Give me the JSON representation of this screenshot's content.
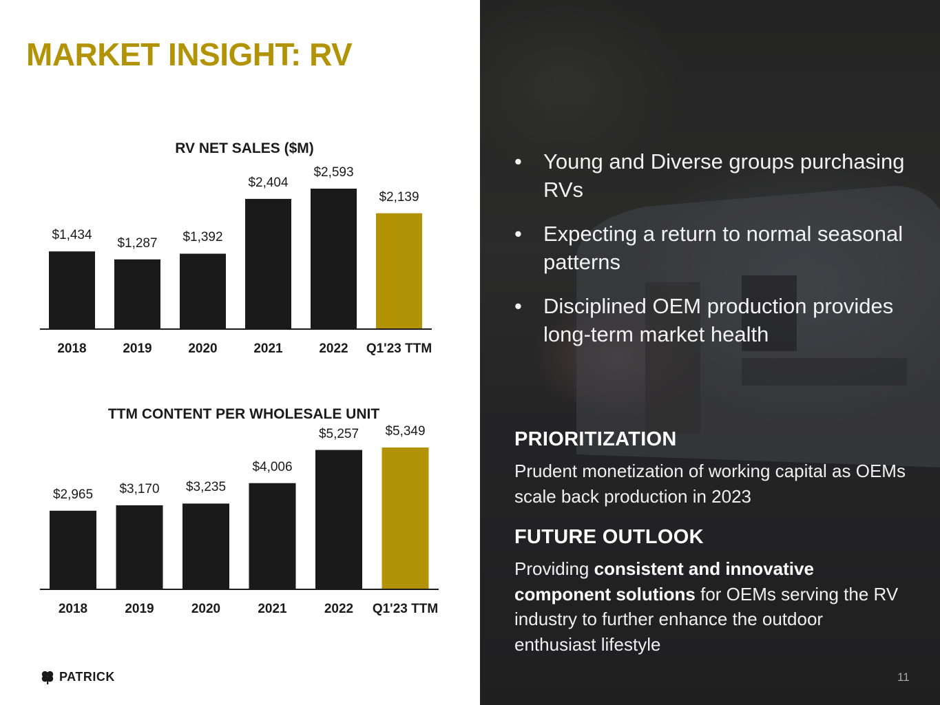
{
  "title": "MARKET INSIGHT: RV",
  "colors": {
    "accent": "#b39306",
    "bar": "#1b1a1b",
    "highlight": "#b39306"
  },
  "chart_data": [
    {
      "type": "bar",
      "title": "RV NET SALES ($M)",
      "categories": [
        "2018",
        "2019",
        "2020",
        "2021",
        "2022",
        "Q1'23 TTM"
      ],
      "values": [
        1434,
        1287,
        1392,
        2404,
        2593,
        2139
      ],
      "data_labels": [
        "$1,434",
        "$1,287",
        "$1,392",
        "$2,404",
        "$2,593",
        "$2,139"
      ],
      "highlight_index": 5,
      "ylim": [
        0,
        2593
      ],
      "grid": false,
      "legend": "none"
    },
    {
      "type": "bar",
      "title": "TTM CONTENT PER WHOLESALE UNIT",
      "categories": [
        "2018",
        "2019",
        "2020",
        "2021",
        "2022",
        "Q1'23 TTM"
      ],
      "values": [
        2965,
        3170,
        3235,
        4006,
        5257,
        5349
      ],
      "data_labels": [
        "$2,965",
        "$3,170",
        "$3,235",
        "$4,006",
        "$5,257",
        "$5,349"
      ],
      "highlight_index": 5,
      "ylim": [
        0,
        5349
      ],
      "grid": false,
      "legend": "none"
    }
  ],
  "bullets": [
    "Young and Diverse groups purchasing RVs",
    "Expecting a return to normal seasonal patterns",
    "Disciplined OEM production provides long-term market health"
  ],
  "prioritization": {
    "heading": "PRIORITIZATION",
    "text": "Prudent monetization of working capital as OEMs scale back production in 2023"
  },
  "outlook": {
    "heading": "FUTURE OUTLOOK",
    "text_1": "Providing ",
    "bold": "consistent and innovative component solutions",
    "text_2": " for OEMs serving the RV industry to further enhance the outdoor enthusiast lifestyle"
  },
  "logo": {
    "text": "PATRICK",
    "icon": "clover-icon"
  },
  "page_number": "11",
  "bullet_glyph": "•"
}
